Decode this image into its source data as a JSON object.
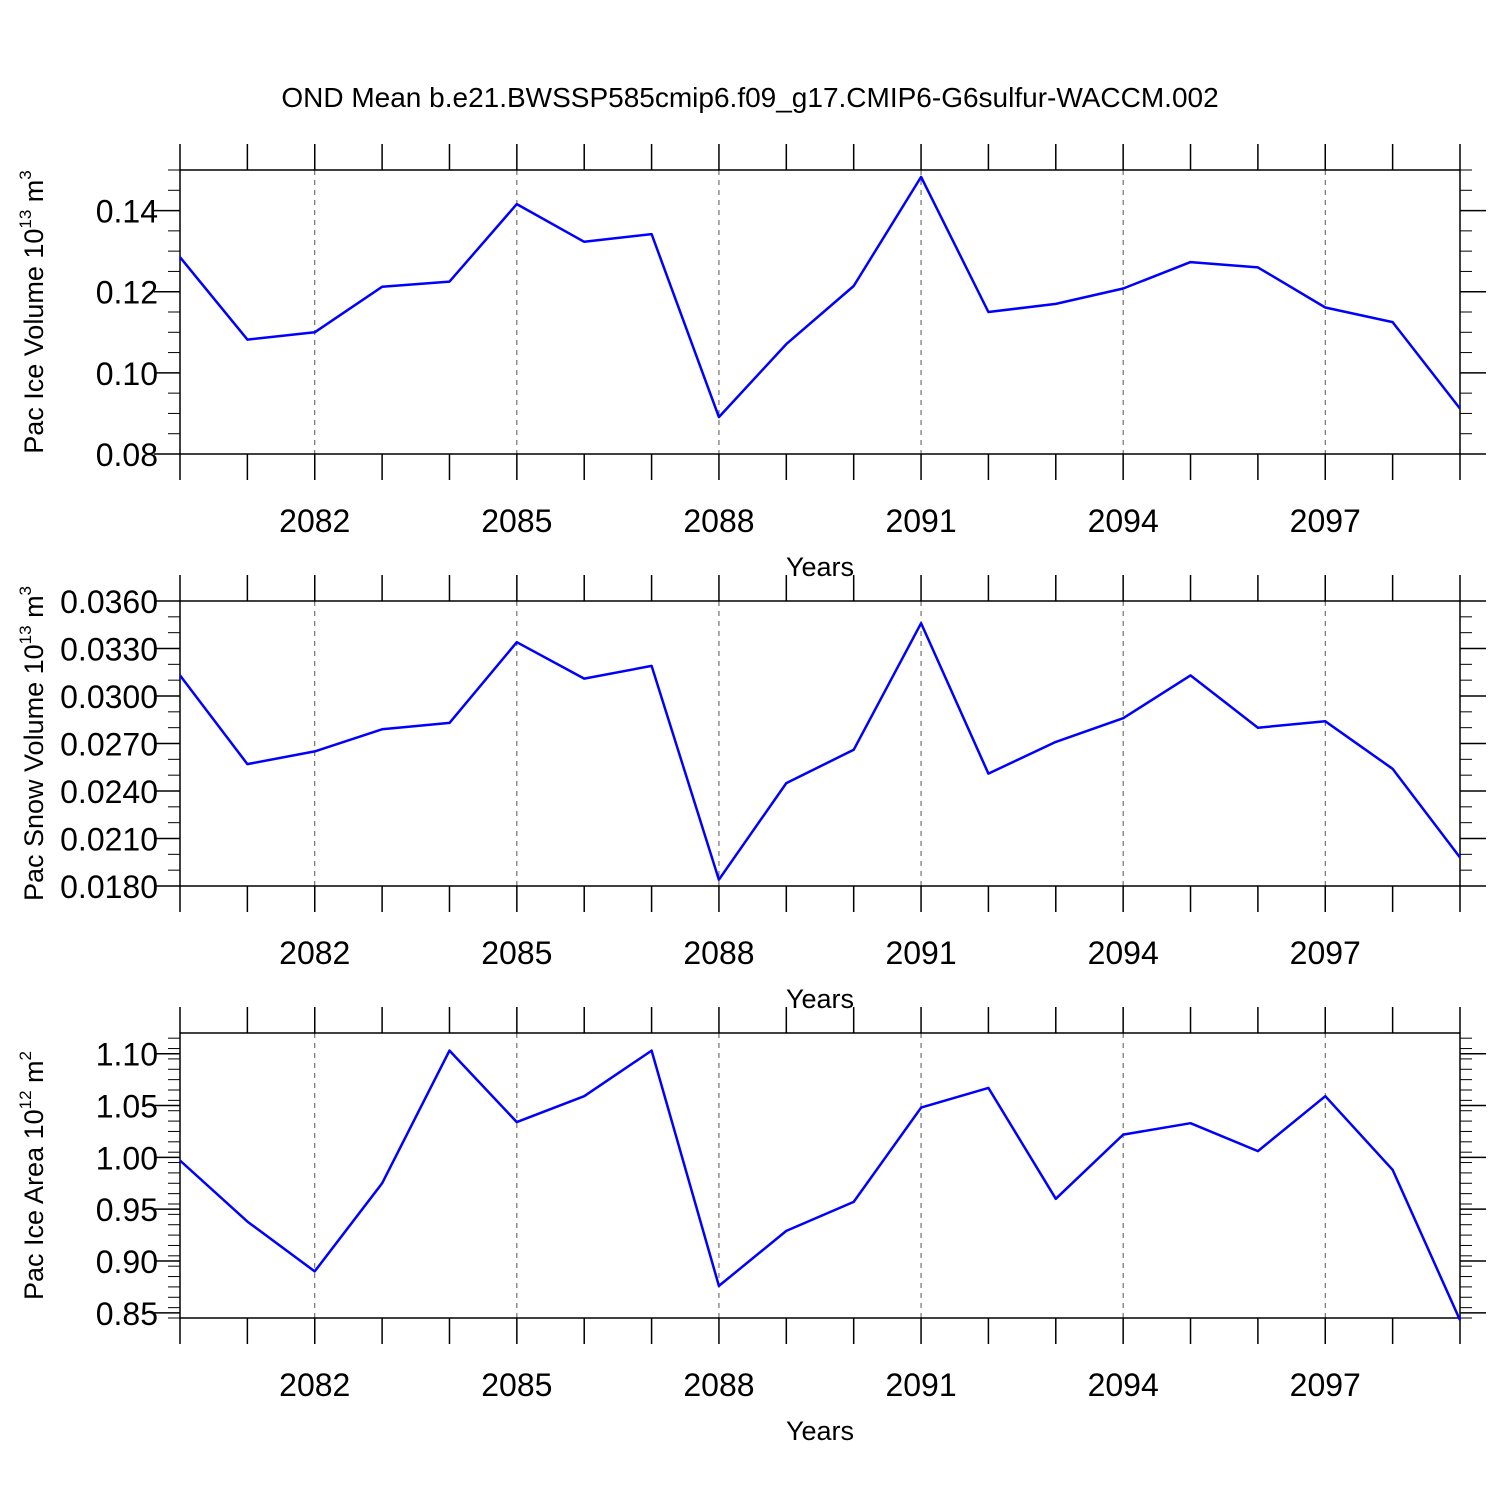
{
  "figure": {
    "title": "OND Mean b.e21.BWSSP585cmip6.f09_g17.CMIP6-G6sulfur-WACCM.002"
  },
  "chart_data": [
    {
      "type": "line",
      "title": "",
      "xlabel": "Years",
      "ylabel_text": "Pac Ice Volume 10",
      "ylabel_exp": "13",
      "ylabel_unit": " m",
      "ylabel_unit_exp": "3",
      "x": [
        2080,
        2081,
        2082,
        2083,
        2084,
        2085,
        2086,
        2087,
        2088,
        2089,
        2090,
        2091,
        2092,
        2093,
        2094,
        2095,
        2096,
        2097,
        2098,
        2099
      ],
      "xlim": [
        2080,
        2099
      ],
      "xticks": [
        2082,
        2085,
        2088,
        2091,
        2094,
        2097
      ],
      "xtick_labels": [
        "2082",
        "2085",
        "2088",
        "2091",
        "2094",
        "2097"
      ],
      "ylim": [
        0.08,
        0.15
      ],
      "yticks": [
        0.08,
        0.1,
        0.12,
        0.14
      ],
      "ytick_labels": [
        "0.08",
        "0.10",
        "0.12",
        "0.14"
      ],
      "yminor_step": 0.005,
      "grid": "vertical dashed at major x ticks",
      "series": [
        {
          "color": "#0000ff",
          "values": [
            0.1285,
            0.1082,
            0.11,
            0.1212,
            0.1225,
            0.1416,
            0.1323,
            0.1342,
            0.0891,
            0.1071,
            0.1214,
            0.1483,
            0.115,
            0.117,
            0.1208,
            0.1273,
            0.126,
            0.1161,
            0.1125,
            0.0912
          ]
        }
      ]
    },
    {
      "type": "line",
      "title": "",
      "xlabel": "Years",
      "ylabel_text": "Pac Snow Volume 10",
      "ylabel_exp": "13",
      "ylabel_unit": " m",
      "ylabel_unit_exp": "3",
      "x": [
        2080,
        2081,
        2082,
        2083,
        2084,
        2085,
        2086,
        2087,
        2088,
        2089,
        2090,
        2091,
        2092,
        2093,
        2094,
        2095,
        2096,
        2097,
        2098,
        2099
      ],
      "xlim": [
        2080,
        2099
      ],
      "xticks": [
        2082,
        2085,
        2088,
        2091,
        2094,
        2097
      ],
      "xtick_labels": [
        "2082",
        "2085",
        "2088",
        "2091",
        "2094",
        "2097"
      ],
      "ylim": [
        0.018,
        0.036
      ],
      "yticks": [
        0.018,
        0.021,
        0.024,
        0.027,
        0.03,
        0.033,
        0.036
      ],
      "ytick_labels": [
        "0.0180",
        "0.0210",
        "0.0240",
        "0.0270",
        "0.0300",
        "0.0330",
        "0.0360"
      ],
      "yminor_step": 0.001,
      "grid": "vertical dashed at major x ticks",
      "series": [
        {
          "color": "#0000ff",
          "values": [
            0.0313,
            0.0257,
            0.0265,
            0.0279,
            0.0283,
            0.0334,
            0.0311,
            0.0319,
            0.0184,
            0.0245,
            0.0266,
            0.0346,
            0.0251,
            0.0271,
            0.0286,
            0.0313,
            0.028,
            0.0284,
            0.0254,
            0.0198
          ]
        }
      ]
    },
    {
      "type": "line",
      "title": "",
      "xlabel": "Years",
      "ylabel_text": "Pac Ice Area 10",
      "ylabel_exp": "12",
      "ylabel_unit": " m",
      "ylabel_unit_exp": "2",
      "x": [
        2080,
        2081,
        2082,
        2083,
        2084,
        2085,
        2086,
        2087,
        2088,
        2089,
        2090,
        2091,
        2092,
        2093,
        2094,
        2095,
        2096,
        2097,
        2098,
        2099
      ],
      "xlim": [
        2080,
        2099
      ],
      "xticks": [
        2082,
        2085,
        2088,
        2091,
        2094,
        2097
      ],
      "xtick_labels": [
        "2082",
        "2085",
        "2088",
        "2091",
        "2094",
        "2097"
      ],
      "ylim": [
        0.845,
        1.12
      ],
      "yticks": [
        0.85,
        0.9,
        0.95,
        1.0,
        1.05,
        1.1
      ],
      "ytick_labels": [
        "0.85",
        "0.90",
        "0.95",
        "1.00",
        "1.05",
        "1.10"
      ],
      "yminor_step": 0.01,
      "grid": "vertical dashed at major x ticks",
      "series": [
        {
          "color": "#0000ff",
          "values": [
            0.997,
            0.938,
            0.89,
            0.975,
            1.103,
            1.034,
            1.059,
            1.103,
            0.876,
            0.929,
            0.957,
            1.048,
            1.067,
            0.96,
            1.022,
            1.033,
            1.006,
            1.059,
            0.988,
            0.843
          ]
        }
      ]
    }
  ]
}
